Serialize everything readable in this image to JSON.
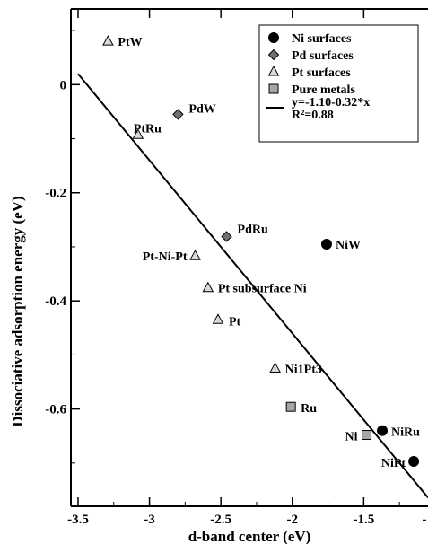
{
  "chart_data": {
    "type": "scatter",
    "xlabel": "d-band center (eV)",
    "ylabel": "Dissociative adsorption energy (eV)",
    "xlim": [
      -3.55,
      -1.05
    ],
    "ylim": [
      -0.78,
      0.14
    ],
    "x_ticks": [
      -3.5,
      -3,
      -2.5,
      -2,
      -1.5
    ],
    "x_tick_labels": [
      "-3.5",
      "-3",
      "-2.5",
      "-2",
      "-1.5"
    ],
    "x_extra_label": "-",
    "y_ticks": [
      0,
      -0.2,
      -0.4,
      -0.6
    ],
    "y_tick_labels": [
      "0",
      "-0.2",
      "-0.4",
      "-0.6"
    ],
    "grid": false,
    "legend_position": "top-right",
    "series": [
      {
        "name": "Ni surfaces",
        "marker": "circle",
        "color": "#000000",
        "points": [
          {
            "label": "NiW",
            "x": -1.76,
            "y": -0.295
          },
          {
            "label": "NiRu",
            "x": -1.37,
            "y": -0.64
          },
          {
            "label": "NiPt",
            "x": -1.15,
            "y": -0.697
          }
        ]
      },
      {
        "name": "Pd surfaces",
        "marker": "diamond",
        "color": "#707070",
        "points": [
          {
            "label": "PdW",
            "x": -2.8,
            "y": -0.055
          },
          {
            "label": "PdRu",
            "x": -2.46,
            "y": -0.281
          }
        ]
      },
      {
        "name": "Pt surfaces",
        "marker": "triangle",
        "color": "#d9d9d9",
        "points": [
          {
            "label": "PtW",
            "x": -3.29,
            "y": 0.08
          },
          {
            "label": "PtRu",
            "x": -3.08,
            "y": -0.093
          },
          {
            "label": "Pt-Ni-Pt",
            "x": -2.68,
            "y": -0.317
          },
          {
            "label": "Pt subsurface Ni",
            "x": -2.59,
            "y": -0.376
          },
          {
            "label": "Pt",
            "x": -2.52,
            "y": -0.435
          },
          {
            "label": "Ni1Pt3",
            "x": -2.12,
            "y": -0.525
          }
        ]
      },
      {
        "name": "Pure metals",
        "marker": "square",
        "color": "#a6a6a6",
        "points": [
          {
            "label": "Ru",
            "x": -2.01,
            "y": -0.596
          },
          {
            "label": "Ni",
            "x": -1.48,
            "y": -0.648
          }
        ]
      }
    ],
    "fit_line": {
      "legend_line1": "y=-1.10-0.32*x",
      "legend_line2": "R²=0.88",
      "intercept": -1.1,
      "slope": -0.32,
      "x_range": [
        -3.5,
        -1.05
      ]
    }
  }
}
